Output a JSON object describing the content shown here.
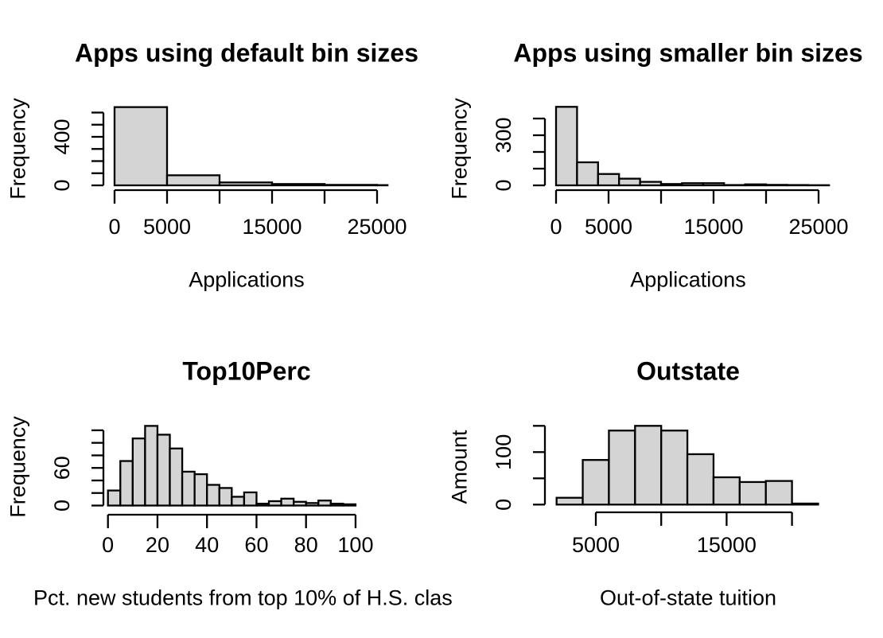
{
  "figure": {
    "background": "#ffffff",
    "bar_fill": "#d4d4d4",
    "bar_stroke": "#000000",
    "axis_color": "#000000",
    "text_color": "#000000"
  },
  "chart_data": [
    {
      "type": "bar",
      "title": "Apps using default bin sizes",
      "xlabel": "Applications",
      "ylabel": "Frequency",
      "bin_edges": [
        0,
        5000,
        10000,
        15000,
        20000,
        25000,
        30000
      ],
      "counts": [
        645,
        83,
        24,
        11,
        4,
        2
      ],
      "x_ticks": [
        0,
        5000,
        10000,
        15000,
        20000,
        25000
      ],
      "x_tick_labels": [
        "0",
        "5000",
        "",
        "15000",
        "",
        "25000"
      ],
      "y_ticks": [
        0,
        100,
        200,
        300,
        400,
        500,
        600
      ],
      "y_tick_labels": [
        "0",
        "",
        "",
        "",
        "400",
        "",
        ""
      ],
      "xlim": [
        0,
        26000
      ],
      "ylim": [
        0,
        650
      ],
      "grid": false,
      "legend": false
    },
    {
      "type": "bar",
      "title": "Apps using smaller bin sizes",
      "xlabel": "Applications",
      "ylabel": "Frequency",
      "bin_edges": [
        0,
        2000,
        4000,
        6000,
        8000,
        10000,
        12000,
        14000,
        16000,
        18000,
        20000,
        22000,
        24000,
        26000
      ],
      "counts": [
        470,
        138,
        68,
        40,
        21,
        8,
        13,
        13,
        2,
        6,
        3,
        2,
        1
      ],
      "x_ticks": [
        0,
        5000,
        10000,
        15000,
        20000,
        25000
      ],
      "x_tick_labels": [
        "0",
        "5000",
        "",
        "15000",
        "",
        "25000"
      ],
      "y_ticks": [
        0,
        100,
        200,
        300,
        400
      ],
      "y_tick_labels": [
        "0",
        "",
        "",
        "300",
        ""
      ],
      "xlim": [
        0,
        26000
      ],
      "ylim": [
        0,
        475
      ],
      "grid": false,
      "legend": false
    },
    {
      "type": "bar",
      "title": "Top10Perc",
      "xlabel": "Pct. new students from top 10% of H.S. clas",
      "ylabel": "Frequency",
      "bin_edges": [
        0,
        5,
        10,
        15,
        20,
        25,
        30,
        35,
        40,
        45,
        50,
        55,
        60,
        65,
        70,
        75,
        80,
        85,
        90,
        95,
        100
      ],
      "counts": [
        24,
        71,
        107,
        127,
        113,
        91,
        54,
        50,
        33,
        28,
        14,
        21,
        3,
        7,
        11,
        6,
        4,
        8,
        3,
        2
      ],
      "x_ticks": [
        0,
        20,
        40,
        60,
        80,
        100
      ],
      "x_tick_labels": [
        "0",
        "20",
        "40",
        "60",
        "80",
        "100"
      ],
      "y_ticks": [
        0,
        20,
        40,
        60,
        80,
        100,
        120
      ],
      "y_tick_labels": [
        "0",
        "",
        "",
        "60",
        "",
        "",
        ""
      ],
      "xlim": [
        0,
        100
      ],
      "ylim": [
        0,
        130
      ],
      "grid": false,
      "legend": false
    },
    {
      "type": "bar",
      "title": "Outstate",
      "xlabel": "Out-of-state tuition",
      "ylabel": "Amount",
      "bin_edges": [
        2000,
        4000,
        6000,
        8000,
        10000,
        12000,
        14000,
        16000,
        18000,
        20000,
        22000
      ],
      "counts": [
        13,
        85,
        141,
        150,
        141,
        96,
        52,
        43,
        45,
        2
      ],
      "x_ticks": [
        5000,
        10000,
        15000,
        20000
      ],
      "x_tick_labels": [
        "5000",
        "",
        "15000",
        ""
      ],
      "y_ticks": [
        0,
        50,
        100,
        150
      ],
      "y_tick_labels": [
        "0",
        "",
        "100",
        ""
      ],
      "xlim": [
        2000,
        22000
      ],
      "ylim": [
        0,
        155
      ],
      "grid": false,
      "legend": false
    }
  ]
}
